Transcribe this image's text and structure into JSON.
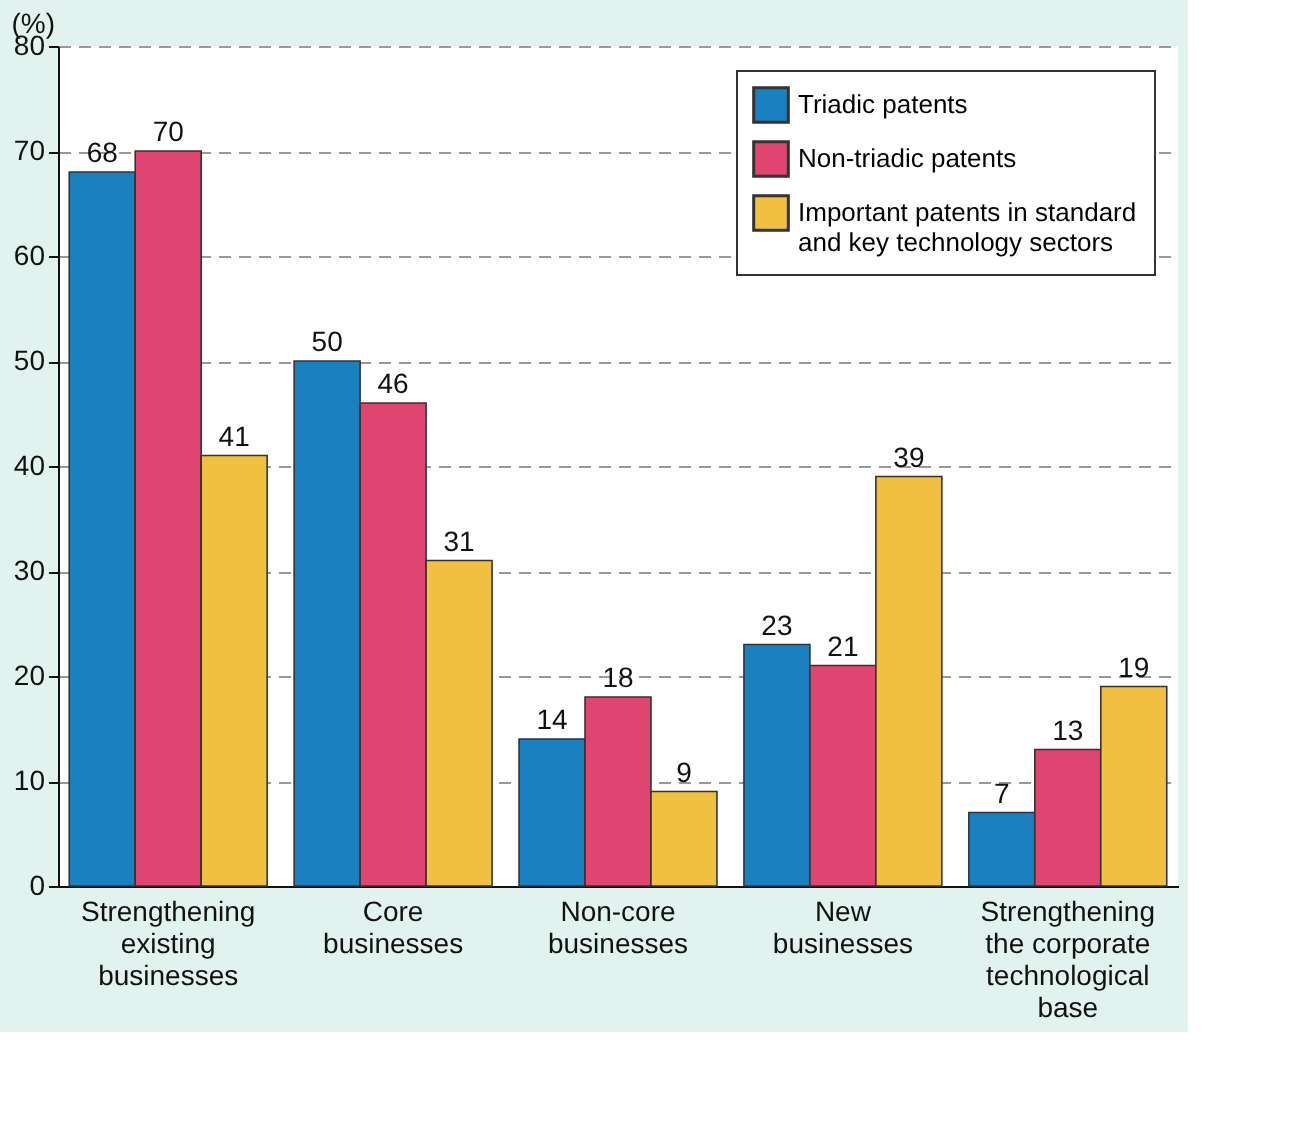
{
  "chart_data": {
    "type": "bar",
    "ylabel": "(%)",
    "categories": [
      "Strengthening\nexisting\nbusinesses",
      "Core\nbusinesses",
      "Non-core\nbusinesses",
      "New\nbusinesses",
      "Strengthening\nthe corporate\ntechnological\nbase"
    ],
    "series": [
      {
        "name": "Triadic patents",
        "color": "#1b80c0",
        "values": [
          68,
          50,
          14,
          23,
          7
        ]
      },
      {
        "name": "Non-triadic patents",
        "color": "#e04470",
        "values": [
          70,
          46,
          18,
          21,
          13
        ]
      },
      {
        "name": "Important patents in standard\nand key technology sectors",
        "color": "#f2c040",
        "values": [
          41,
          31,
          9,
          39,
          19
        ]
      }
    ],
    "ylim": [
      0,
      80
    ],
    "yticks": [
      0,
      10,
      20,
      30,
      40,
      50,
      60,
      70,
      80
    ],
    "grid": "y",
    "legend": "top right",
    "data_labels": true
  }
}
